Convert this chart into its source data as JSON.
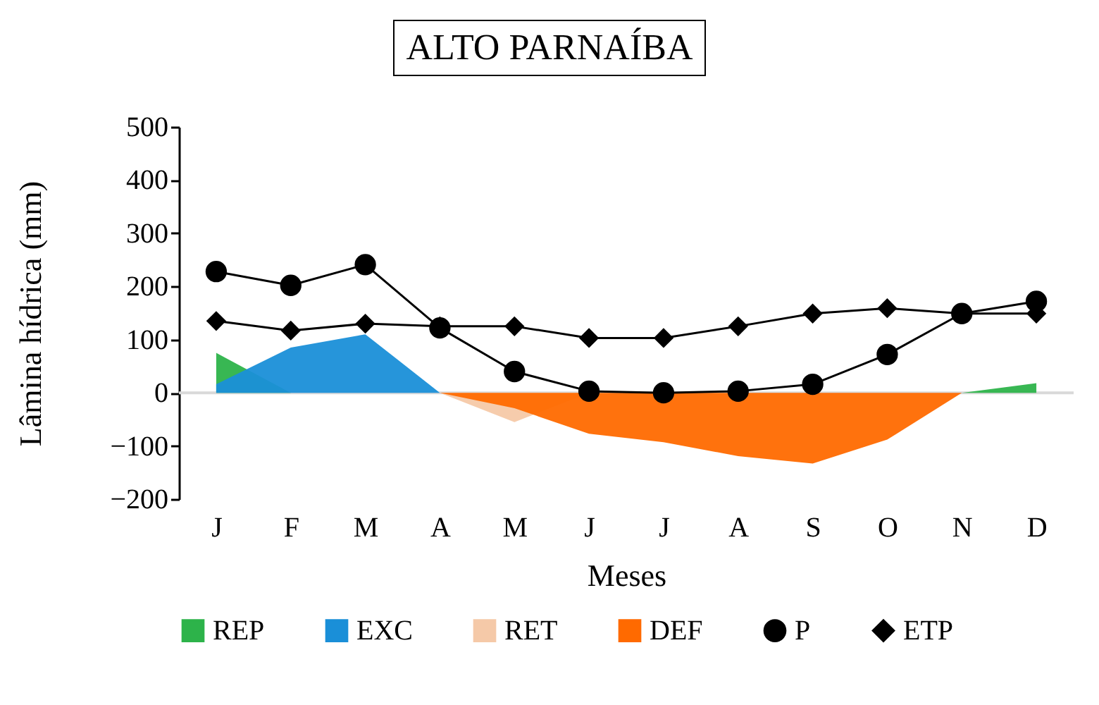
{
  "chart_data": {
    "type": "area",
    "title": "ALTO PARNAÍBA",
    "xlabel": "Meses",
    "ylabel": "Lâmina hídrica (mm)",
    "categories": [
      "J",
      "F",
      "M",
      "A",
      "M",
      "J",
      "J",
      "A",
      "S",
      "O",
      "N",
      "D"
    ],
    "series": [
      {
        "name": "REP",
        "color": "#2db34a",
        "values": [
          75,
          0,
          0,
          0,
          0,
          0,
          0,
          0,
          0,
          0,
          0,
          18
        ]
      },
      {
        "name": "EXC",
        "color": "#1a8fd8",
        "values": [
          16,
          85,
          110,
          0,
          0,
          0,
          0,
          0,
          0,
          0,
          0,
          0
        ]
      },
      {
        "name": "RET",
        "color": "#f5c9a8",
        "values": [
          0,
          0,
          0,
          0,
          -55,
          0,
          0,
          0,
          0,
          0,
          0,
          0
        ]
      },
      {
        "name": "DEF",
        "color": "#ff6a00",
        "values": [
          0,
          0,
          0,
          0,
          -29,
          -77,
          -93,
          -119,
          -133,
          -88,
          0,
          0
        ]
      },
      {
        "name": "P",
        "type": "line",
        "color": "#000000",
        "marker": "circle",
        "values": [
          228,
          202,
          241,
          122,
          40,
          3,
          0,
          3,
          16,
          72,
          149,
          172
        ]
      },
      {
        "name": "ETP",
        "type": "line",
        "color": "#000000",
        "marker": "diamond",
        "values": [
          135,
          117,
          130,
          125,
          125,
          103,
          103,
          125,
          149,
          159,
          149,
          149
        ]
      }
    ],
    "ylim": [
      -200,
      500
    ],
    "yticks": [
      -200,
      -100,
      0,
      100,
      200,
      300,
      400,
      500
    ],
    "grid": false,
    "legend": "bottom",
    "ref_lines": [
      {
        "axis": "y",
        "value": 0,
        "color": "#d9d9d9"
      }
    ]
  }
}
